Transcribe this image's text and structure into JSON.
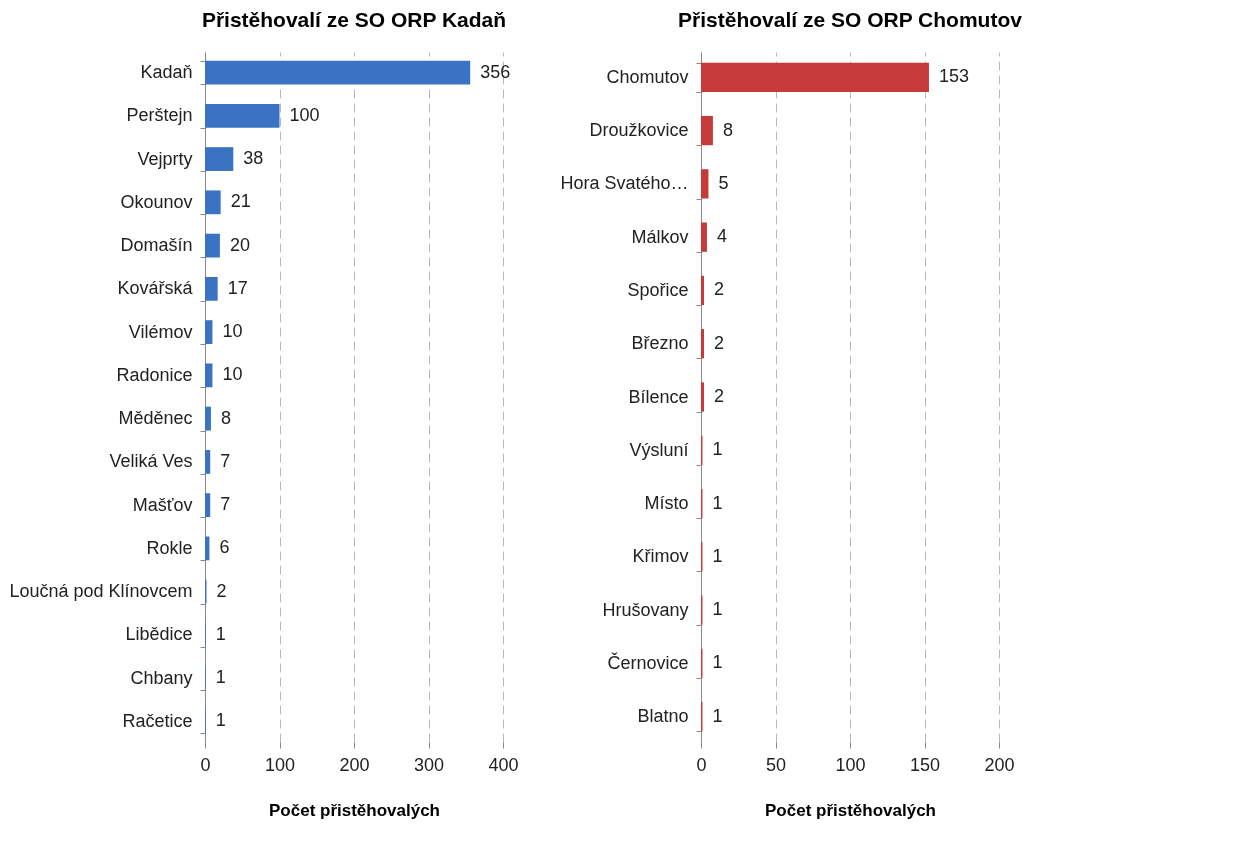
{
  "chart_data": [
    {
      "type": "bar",
      "orientation": "horizontal",
      "title": "Přistěhovalí ze SO ORP Kadaň",
      "xlabel": "Počet přistěhovalých",
      "categories": [
        "Kadaň",
        "Perštejn",
        "Vejprty",
        "Okounov",
        "Domašín",
        "Kovářská",
        "Vilémov",
        "Radonice",
        "Měděnec",
        "Veliká Ves",
        "Mašťov",
        "Rokle",
        "Loučná pod Klínovcem",
        "Libědice",
        "Chbany",
        "Račetice"
      ],
      "values": [
        356,
        100,
        38,
        21,
        20,
        17,
        10,
        10,
        8,
        7,
        7,
        6,
        2,
        1,
        1,
        1
      ],
      "color": "#3b73c4",
      "xlim": [
        0,
        400
      ],
      "xticks": [
        0,
        100,
        200,
        300,
        400
      ],
      "grid": "x",
      "data_labels": true
    },
    {
      "type": "bar",
      "orientation": "horizontal",
      "title": "Přistěhovalí ze SO ORP Chomutov",
      "xlabel": "Počet přistěhovalých",
      "categories": [
        "Chomutov",
        "Droužkovice",
        "Hora Svatého…",
        "Málkov",
        "Spořice",
        "Březno",
        "Bílence",
        "Výsluní",
        "Místo",
        "Křimov",
        "Hrušovany",
        "Černovice",
        "Blatno"
      ],
      "values": [
        153,
        8,
        5,
        4,
        2,
        2,
        2,
        1,
        1,
        1,
        1,
        1,
        1
      ],
      "color": "#c73a3a",
      "xlim": [
        0,
        200
      ],
      "xticks": [
        0,
        50,
        100,
        150,
        200
      ],
      "grid": "x",
      "data_labels": true
    }
  ]
}
